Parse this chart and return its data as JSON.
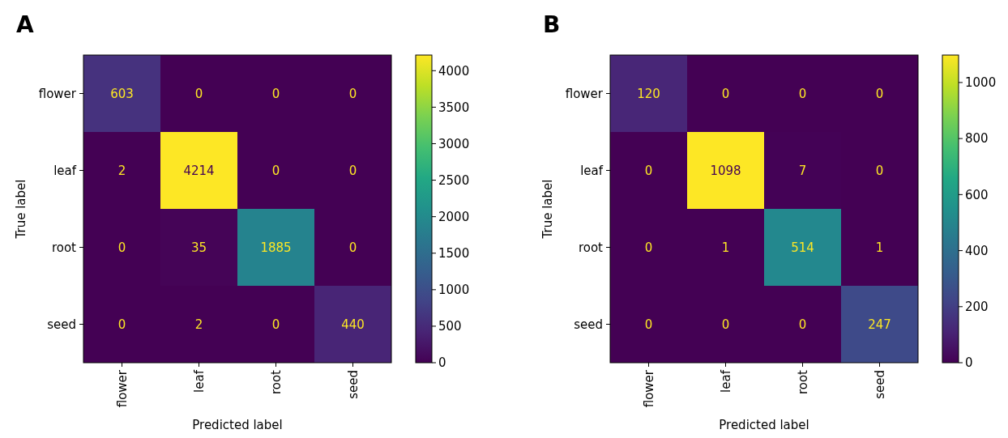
{
  "chart_data": [
    {
      "type": "heatmap",
      "title": "A",
      "xlabel": "Predicted label",
      "ylabel": "True label",
      "categories": [
        "flower",
        "leaf",
        "root",
        "seed"
      ],
      "y_categories": [
        "flower",
        "leaf",
        "root",
        "seed"
      ],
      "cells": [
        [
          603,
          0,
          0,
          0
        ],
        [
          2,
          4214,
          0,
          0
        ],
        [
          0,
          35,
          1885,
          0
        ],
        [
          0,
          2,
          0,
          440
        ]
      ],
      "clim": [
        0,
        4214
      ],
      "cticks": [
        0,
        500,
        1000,
        1500,
        2000,
        2500,
        3000,
        3500,
        4000
      ],
      "data_labels": true
    },
    {
      "type": "heatmap",
      "title": "B",
      "xlabel": "Predicted label",
      "ylabel": "True label",
      "categories": [
        "flower",
        "leaf",
        "root",
        "seed"
      ],
      "y_categories": [
        "flower",
        "leaf",
        "root",
        "seed"
      ],
      "cells": [
        [
          120,
          0,
          0,
          0
        ],
        [
          0,
          1098,
          7,
          0
        ],
        [
          0,
          1,
          514,
          1
        ],
        [
          0,
          0,
          0,
          247
        ]
      ],
      "clim": [
        0,
        1098
      ],
      "cticks": [
        0,
        200,
        400,
        600,
        800,
        1000
      ],
      "data_labels": true
    }
  ]
}
